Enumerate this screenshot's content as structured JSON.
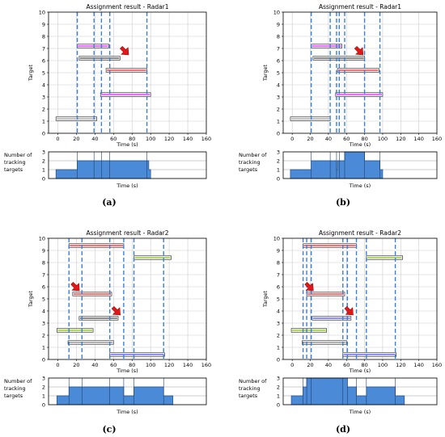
{
  "colors": {
    "vline": "#3d7fd3",
    "area_fill": "#4a8ad6",
    "grid": "#cccccc",
    "bar_stroke": "#333333"
  },
  "chart_data": [
    {
      "type": "bar",
      "label": "(a)",
      "title": "Assignment result - Radar1",
      "xlabel": "Time (s)",
      "ylabel": "Target",
      "xlim": [
        -10,
        160
      ],
      "ylim": [
        0,
        10
      ],
      "xticks": [
        "0",
        "20",
        "40",
        "60",
        "80",
        "100",
        "120",
        "140",
        "160"
      ],
      "yticks": [
        "0",
        "1",
        "2",
        "3",
        "4",
        "5",
        "6",
        "7",
        "8",
        "9",
        "10"
      ],
      "grid": true,
      "bars": [
        {
          "target": 1.2,
          "start": -2,
          "end": 42,
          "color": "#b0b0b0"
        },
        {
          "target": 3.2,
          "start": 46,
          "end": 100,
          "color": "#e040fb"
        },
        {
          "target": 5.2,
          "start": 52,
          "end": 96,
          "color": "#ff4040"
        },
        {
          "target": 6.2,
          "start": 23,
          "end": 67,
          "color": "#666666"
        },
        {
          "target": 7.2,
          "start": 21,
          "end": 55,
          "color": "#e040fb"
        }
      ],
      "vlines": [
        21,
        39,
        47,
        56,
        96
      ],
      "arrow": {
        "x": 72,
        "y": 6.8
      },
      "count_panel": {
        "ylabel": "Number of tracking targets",
        "xlabel": "Time (s)",
        "ylim": [
          0,
          3
        ],
        "yticks": [
          "0",
          "1",
          "2",
          "3"
        ],
        "steps": [
          [
            -2,
            1
          ],
          [
            21,
            2
          ],
          [
            98,
            1
          ],
          [
            100,
            0
          ]
        ],
        "vlines": [
          21,
          39,
          47,
          56,
          96
        ]
      }
    },
    {
      "type": "bar",
      "label": "(b)",
      "title": "Assignment result - Radar1",
      "xlabel": "Time (s)",
      "ylabel": "Target",
      "xlim": [
        -10,
        160
      ],
      "ylim": [
        0,
        10
      ],
      "xticks": [
        "0",
        "20",
        "40",
        "60",
        "80",
        "100",
        "120",
        "140",
        "160"
      ],
      "yticks": [
        "0",
        "1",
        "2",
        "3",
        "4",
        "5",
        "6",
        "7",
        "8",
        "9",
        "10"
      ],
      "grid": true,
      "bars": [
        {
          "target": 1.2,
          "start": -2,
          "end": 42,
          "color": "#b0b0b0"
        },
        {
          "target": 3.2,
          "start": 48,
          "end": 100,
          "color": "#e040fb"
        },
        {
          "target": 5.2,
          "start": 50,
          "end": 96,
          "color": "#ff4040"
        },
        {
          "target": 6.2,
          "start": 23,
          "end": 80,
          "color": "#666666"
        },
        {
          "target": 7.2,
          "start": 21,
          "end": 55,
          "color": "#e040fb"
        }
      ],
      "vlines": [
        21,
        42,
        49,
        52,
        58,
        80,
        97
      ],
      "arrow": {
        "x": 74,
        "y": 6.8
      },
      "count_panel": {
        "ylabel": "Number of tracking targets",
        "xlabel": "Time (s)",
        "ylim": [
          0,
          3
        ],
        "yticks": [
          "0",
          "1",
          "2",
          "3"
        ],
        "steps": [
          [
            -2,
            1
          ],
          [
            21,
            2
          ],
          [
            49,
            1
          ],
          [
            50,
            2
          ],
          [
            58,
            3
          ],
          [
            80,
            2
          ],
          [
            97,
            1
          ],
          [
            100,
            0
          ]
        ],
        "vlines": [
          21,
          42,
          49,
          52,
          58,
          80,
          97
        ]
      }
    },
    {
      "type": "bar",
      "label": "(c)",
      "title": "Assignment result - Radar2",
      "xlabel": "Time (s)",
      "ylabel": "Target",
      "xlim": [
        -10,
        160
      ],
      "ylim": [
        0,
        10
      ],
      "xticks": [
        "0",
        "20",
        "40",
        "60",
        "80",
        "100",
        "120",
        "140",
        "160"
      ],
      "yticks": [
        "0",
        "1",
        "2",
        "3",
        "4",
        "5",
        "6",
        "7",
        "8",
        "9",
        "10"
      ],
      "grid": true,
      "bars": [
        {
          "target": 0.4,
          "start": 56,
          "end": 115,
          "color": "#6a6aff"
        },
        {
          "target": 1.4,
          "start": 11,
          "end": 60,
          "color": "#999999"
        },
        {
          "target": 2.4,
          "start": -1,
          "end": 38,
          "color": "#9acd32"
        },
        {
          "target": 3.4,
          "start": 23,
          "end": 65,
          "color": "#666666"
        },
        {
          "target": 5.4,
          "start": 16,
          "end": 58,
          "color": "#ff4040"
        },
        {
          "target": 8.4,
          "start": 82,
          "end": 122,
          "color": "#9acd32"
        },
        {
          "target": 9.4,
          "start": 12,
          "end": 71,
          "color": "#ff4040"
        }
      ],
      "vlines": [
        12,
        26,
        56,
        71,
        82,
        114
      ],
      "arrows": [
        {
          "x": 19,
          "y": 6.0
        },
        {
          "x": 63,
          "y": 4.0
        }
      ],
      "count_panel": {
        "ylabel": "Number of tracking targets",
        "xlabel": "Time (s)",
        "ylim": [
          0,
          3
        ],
        "yticks": [
          "0",
          "1",
          "2",
          "3"
        ],
        "steps": [
          [
            -1,
            1
          ],
          [
            12,
            2
          ],
          [
            71,
            1
          ],
          [
            82,
            2
          ],
          [
            114,
            1
          ],
          [
            124,
            0
          ]
        ],
        "vlines": [
          12,
          26,
          56,
          71,
          82,
          114
        ]
      }
    },
    {
      "type": "bar",
      "label": "(d)",
      "title": "Assignment result - Radar2",
      "xlabel": "Time (s)",
      "ylabel": "Target",
      "xlim": [
        -10,
        160
      ],
      "ylim": [
        0,
        10
      ],
      "xticks": [
        "0",
        "20",
        "40",
        "60",
        "80",
        "100",
        "120",
        "140",
        "160"
      ],
      "yticks": [
        "0",
        "1",
        "2",
        "3",
        "4",
        "5",
        "6",
        "7",
        "8",
        "9",
        "10"
      ],
      "grid": true,
      "bars": [
        {
          "target": 0.4,
          "start": 56,
          "end": 115,
          "color": "#6a6aff"
        },
        {
          "target": 1.4,
          "start": 11,
          "end": 60,
          "color": "#999999"
        },
        {
          "target": 2.4,
          "start": -1,
          "end": 38,
          "color": "#9acd32"
        },
        {
          "target": 3.4,
          "start": 22,
          "end": 65,
          "color": "#6a6aff"
        },
        {
          "target": 5.4,
          "start": 16,
          "end": 58,
          "color": "#ff4040"
        },
        {
          "target": 8.4,
          "start": 82,
          "end": 122,
          "color": "#9acd32"
        },
        {
          "target": 9.4,
          "start": 12,
          "end": 71,
          "color": "#ff4040"
        }
      ],
      "vlines": [
        12,
        16,
        21,
        56,
        61,
        71,
        82,
        114
      ],
      "arrows": [
        {
          "x": 19,
          "y": 6.0
        },
        {
          "x": 63,
          "y": 4.0
        }
      ],
      "count_panel": {
        "ylabel": "Number of tracking targets",
        "xlabel": "Time (s)",
        "ylim": [
          0,
          3
        ],
        "yticks": [
          "0",
          "1",
          "2",
          "3"
        ],
        "steps": [
          [
            -1,
            1
          ],
          [
            12,
            2
          ],
          [
            16,
            3
          ],
          [
            61,
            2
          ],
          [
            71,
            1
          ],
          [
            82,
            2
          ],
          [
            114,
            1
          ],
          [
            124,
            0
          ]
        ],
        "vlines": [
          12,
          16,
          21,
          56,
          61,
          71,
          82,
          114
        ]
      }
    }
  ]
}
